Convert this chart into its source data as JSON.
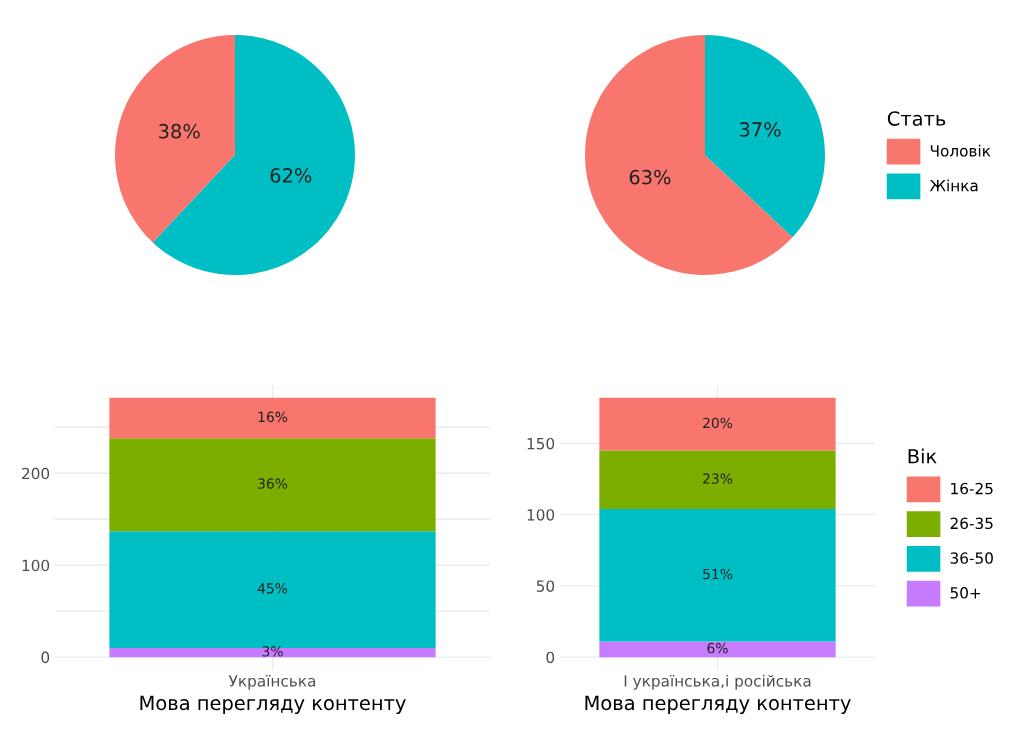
{
  "chart_data": [
    {
      "type": "pie",
      "categories": [
        "Чоловік",
        "Жінка"
      ],
      "values": [
        38,
        62
      ],
      "value_labels": [
        "38%",
        "62%"
      ],
      "colors": [
        "#f8766d",
        "#00bfc4"
      ],
      "legend": "right",
      "legend_title": "Стать"
    },
    {
      "type": "pie",
      "categories": [
        null,
        null
      ],
      "values": [
        63,
        37
      ],
      "value_labels": [
        "63%",
        "37%"
      ],
      "colors": [
        "#f8766d",
        "#00bfc4"
      ]
    },
    {
      "type": "bar",
      "stacked": true,
      "categories": [
        "Українська"
      ],
      "xlabel": "Мова перегляду контенту",
      "ylim": [
        -14,
        296
      ],
      "yticks": [
        0,
        {
          "value": 50,
          "label": null
        },
        100,
        {
          "value": 150,
          "label": null
        },
        200,
        {
          "value": 250,
          "label": null
        }
      ],
      "grid": true,
      "legend": "right",
      "legend_title": "Вік",
      "series": [
        {
          "name": "50+",
          "color": "#c77cff",
          "values": [
            10
          ]
        },
        {
          "name": "36-50",
          "color": "#00bfc4",
          "values": [
            127
          ]
        },
        {
          "name": "26-35",
          "color": "#7cae00",
          "values": [
            101
          ]
        },
        {
          "name": "16-25",
          "color": "#f8766d",
          "values": [
            44
          ]
        }
      ],
      "annotations": [
        "3%",
        "45%",
        "36%",
        "16%"
      ]
    },
    {
      "type": "bar",
      "stacked": true,
      "categories": [
        "І українська,і російська"
      ],
      "xlabel": "Мова перегляду контенту",
      "ylim": [
        -9,
        191
      ],
      "yticks": [
        0,
        50,
        100,
        150
      ],
      "grid": true,
      "series": [
        {
          "color": "#c77cff",
          "values": [
            11
          ]
        },
        {
          "color": "#00bfc4",
          "values": [
            93
          ]
        },
        {
          "color": "#7cae00",
          "values": [
            41
          ]
        },
        {
          "color": "#f8766d",
          "values": [
            37
          ]
        }
      ],
      "annotations": [
        "6%",
        "51%",
        "23%",
        "20%"
      ]
    }
  ]
}
